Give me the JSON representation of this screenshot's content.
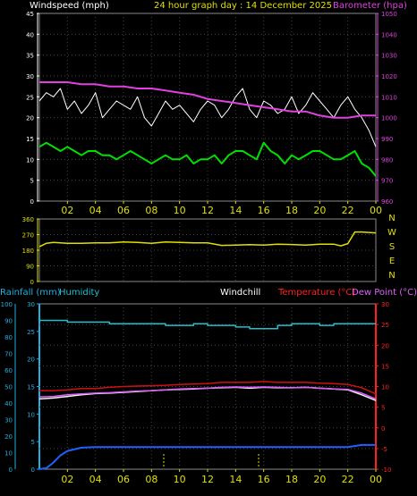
{
  "colors": {
    "background": "#000000",
    "plot_border": "#8a8a8a",
    "wind": "#ffffff",
    "gust_avg": "#00e000",
    "barometer": "#e040e0",
    "direction": "#e0e000",
    "humidity": "#20c0d0",
    "rainfall": "#2060ff",
    "temperature": "#d01010",
    "dewpoint": "#e060ff",
    "windchill": "#f0f0f0",
    "y_left_top": "#ffffff",
    "y_right_top": "#e040e0",
    "cardinal": "#e0e000",
    "y_left_bottom": "#20b0e0",
    "y_right_bottom": "#ff2020",
    "x_tick": "#e0e000"
  },
  "chart_data": [
    {
      "type": "line",
      "panel": "wind-barometer",
      "title": "24 hour graph day : 14 December 2025",
      "ylabel_left": "Windspeed (mph)",
      "ylabel_right": "Barometer (hpa)",
      "y_left_ticks": [
        "0",
        "5",
        "10",
        "15",
        "20",
        "25",
        "30",
        "35",
        "40",
        "45"
      ],
      "y_left_lim": [
        0,
        45
      ],
      "y_right_ticks": [
        "960",
        "970",
        "980",
        "990",
        "1000",
        "1010",
        "1020",
        "1030",
        "1040",
        "1050"
      ],
      "y_right_lim": [
        960,
        1050
      ],
      "x_ticks": [
        "02",
        "04",
        "06",
        "08",
        "10",
        "12",
        "14",
        "16",
        "18",
        "20",
        "22",
        "00"
      ],
      "x_lim": [
        0,
        24
      ],
      "series": [
        {
          "key": "wind",
          "axis": "left",
          "x": [
            0,
            0.5,
            1,
            1.5,
            2,
            2.5,
            3,
            3.5,
            4,
            4.5,
            5,
            5.5,
            6,
            6.5,
            7,
            7.5,
            8,
            8.5,
            9,
            9.5,
            10,
            10.5,
            11,
            11.5,
            12,
            12.5,
            13,
            13.5,
            14,
            14.5,
            15,
            15.5,
            16,
            16.5,
            17,
            17.5,
            18,
            18.5,
            19,
            19.5,
            20,
            20.5,
            21,
            21.5,
            22,
            22.5,
            23,
            23.5,
            24
          ],
          "values": [
            24,
            26,
            25,
            27,
            22,
            24,
            21,
            23,
            26,
            20,
            22,
            24,
            23,
            22,
            25,
            20,
            18,
            21,
            24,
            22,
            23,
            21,
            19,
            22,
            24,
            23,
            20,
            22,
            25,
            27,
            22,
            20,
            24,
            23,
            21,
            22,
            25,
            21,
            23,
            26,
            24,
            22,
            20,
            23,
            25,
            22,
            20,
            17,
            13
          ]
        },
        {
          "key": "gust_avg",
          "axis": "left",
          "x": [
            0,
            0.5,
            1,
            1.5,
            2,
            2.5,
            3,
            3.5,
            4,
            4.5,
            5,
            5.5,
            6,
            6.5,
            7,
            7.5,
            8,
            8.5,
            9,
            9.5,
            10,
            10.5,
            11,
            11.5,
            12,
            12.5,
            13,
            13.5,
            14,
            14.5,
            15,
            15.5,
            16,
            16.5,
            17,
            17.5,
            18,
            18.5,
            19,
            19.5,
            20,
            20.5,
            21,
            21.5,
            22,
            22.5,
            23,
            23.5,
            24
          ],
          "values": [
            13,
            14,
            13,
            12,
            13,
            12,
            11,
            12,
            12,
            11,
            11,
            10,
            11,
            12,
            11,
            10,
            9,
            10,
            11,
            10,
            10,
            11,
            9,
            10,
            10,
            11,
            9,
            11,
            12,
            12,
            11,
            10,
            14,
            12,
            11,
            9,
            11,
            10,
            11,
            12,
            12,
            11,
            10,
            10,
            11,
            12,
            9,
            8,
            6
          ]
        },
        {
          "key": "barometer",
          "axis": "right",
          "x": [
            0,
            1,
            2,
            3,
            4,
            5,
            6,
            7,
            8,
            9,
            10,
            11,
            12,
            13,
            14,
            15,
            16,
            17,
            18,
            19,
            20,
            21,
            22,
            23,
            24
          ],
          "values": [
            1017,
            1017,
            1017,
            1016,
            1016,
            1015,
            1015,
            1014,
            1014,
            1013,
            1012,
            1011,
            1009,
            1008,
            1007,
            1006,
            1005,
            1004,
            1003,
            1003,
            1001,
            1000,
            1000,
            1001,
            1001
          ]
        }
      ]
    },
    {
      "type": "line",
      "panel": "wind-direction",
      "y_left_ticks": [
        "0",
        "90",
        "180",
        "270",
        "360"
      ],
      "y_lim": [
        0,
        360
      ],
      "cardinal_labels": [
        "N",
        "W",
        "S",
        "E",
        "N"
      ],
      "x_lim": [
        0,
        24
      ],
      "series": [
        {
          "key": "direction",
          "x": [
            0,
            0.5,
            1,
            2,
            3,
            4,
            5,
            6,
            7,
            8,
            9,
            10,
            11,
            12,
            13,
            14,
            15,
            16,
            17,
            18,
            19,
            20,
            21,
            21.5,
            22,
            22.5,
            23,
            24
          ],
          "values": [
            200,
            220,
            225,
            220,
            220,
            222,
            222,
            228,
            225,
            220,
            228,
            225,
            222,
            222,
            208,
            210,
            212,
            210,
            215,
            213,
            210,
            215,
            215,
            205,
            218,
            285,
            285,
            280
          ]
        }
      ]
    },
    {
      "type": "line",
      "panel": "rain-humidity-temperature",
      "legend": [
        "Rainfall (mm)",
        "Humidity",
        "Windchill",
        "Temperature (°C)",
        "Dew Point (°C)"
      ],
      "y_left_ticks": [
        "0",
        "10",
        "20",
        "30",
        "40",
        "50",
        "60",
        "70",
        "80",
        "90",
        "100"
      ],
      "y_left_lim": [
        0,
        100
      ],
      "y_left2_ticks": [
        "0",
        "5",
        "10",
        "15",
        "20",
        "25",
        "30"
      ],
      "y_left2_lim": [
        0,
        30
      ],
      "y_right_ticks": [
        "-10",
        "-5",
        "0",
        "5",
        "10",
        "15",
        "20",
        "25",
        "30"
      ],
      "y_right_lim": [
        -10,
        30
      ],
      "x_ticks": [
        "02",
        "04",
        "06",
        "08",
        "10",
        "12",
        "14",
        "16",
        "18",
        "20",
        "22",
        "00"
      ],
      "x_lim": [
        0,
        24
      ],
      "series": [
        {
          "key": "humidity",
          "axis": "percent",
          "x": [
            0,
            1,
            2,
            3,
            4,
            5,
            6,
            7,
            8,
            9,
            10,
            11,
            12,
            13,
            14,
            15,
            16,
            17,
            18,
            19,
            20,
            21,
            22,
            23,
            24
          ],
          "values": [
            90,
            90,
            89,
            89,
            89,
            88,
            88,
            88,
            88,
            87,
            87,
            88,
            87,
            87,
            86,
            85,
            85,
            87,
            88,
            88,
            87,
            88,
            88,
            88,
            88
          ]
        },
        {
          "key": "rainfall",
          "axis": "rain",
          "x": [
            0,
            0.5,
            1,
            1.5,
            2,
            3,
            4,
            6,
            8,
            10,
            12,
            14,
            16,
            18,
            20,
            22,
            23,
            24
          ],
          "values": [
            0,
            0.2,
            1.2,
            2.5,
            3.3,
            3.9,
            4.0,
            4.0,
            4.0,
            4.0,
            4.0,
            4.0,
            4.0,
            4.0,
            4.0,
            4.0,
            4.4,
            4.4
          ]
        },
        {
          "key": "temperature",
          "axis": "temp",
          "x": [
            0,
            1,
            2,
            3,
            4,
            5,
            6,
            7,
            8,
            9,
            10,
            11,
            12,
            13,
            14,
            15,
            16,
            17,
            18,
            19,
            20,
            21,
            22,
            23,
            24
          ],
          "values": [
            9.0,
            9.0,
            9.2,
            9.5,
            9.5,
            9.8,
            10.0,
            10.1,
            10.2,
            10.3,
            10.5,
            10.6,
            10.7,
            11.0,
            11.0,
            11.0,
            11.2,
            11.0,
            11.0,
            11.0,
            10.8,
            10.7,
            10.5,
            9.7,
            8.2
          ]
        },
        {
          "key": "windchill",
          "axis": "temp",
          "x": [
            0,
            1,
            2,
            3,
            4,
            5,
            6,
            7,
            8,
            9,
            10,
            11,
            12,
            13,
            14,
            15,
            16,
            17,
            18,
            19,
            20,
            21,
            22,
            23,
            24
          ],
          "values": [
            7.0,
            7.2,
            7.6,
            8.0,
            8.3,
            8.4,
            8.6,
            8.8,
            9.0,
            9.2,
            9.3,
            9.4,
            9.6,
            9.7,
            9.8,
            9.6,
            9.8,
            9.7,
            9.7,
            9.8,
            9.6,
            9.4,
            9.2,
            8.0,
            6.6
          ]
        },
        {
          "key": "dewpoint",
          "axis": "temp",
          "x": [
            0,
            1,
            2,
            3,
            4,
            5,
            6,
            7,
            8,
            9,
            10,
            11,
            12,
            13,
            14,
            15,
            16,
            17,
            18,
            19,
            20,
            21,
            22,
            23,
            24
          ],
          "values": [
            7.5,
            7.6,
            8.0,
            8.2,
            8.4,
            8.5,
            8.7,
            8.9,
            9.0,
            9.2,
            9.4,
            9.5,
            9.6,
            9.8,
            9.9,
            9.8,
            9.9,
            9.8,
            9.7,
            9.8,
            9.6,
            9.4,
            9.3,
            8.4,
            7.0
          ]
        }
      ]
    }
  ]
}
